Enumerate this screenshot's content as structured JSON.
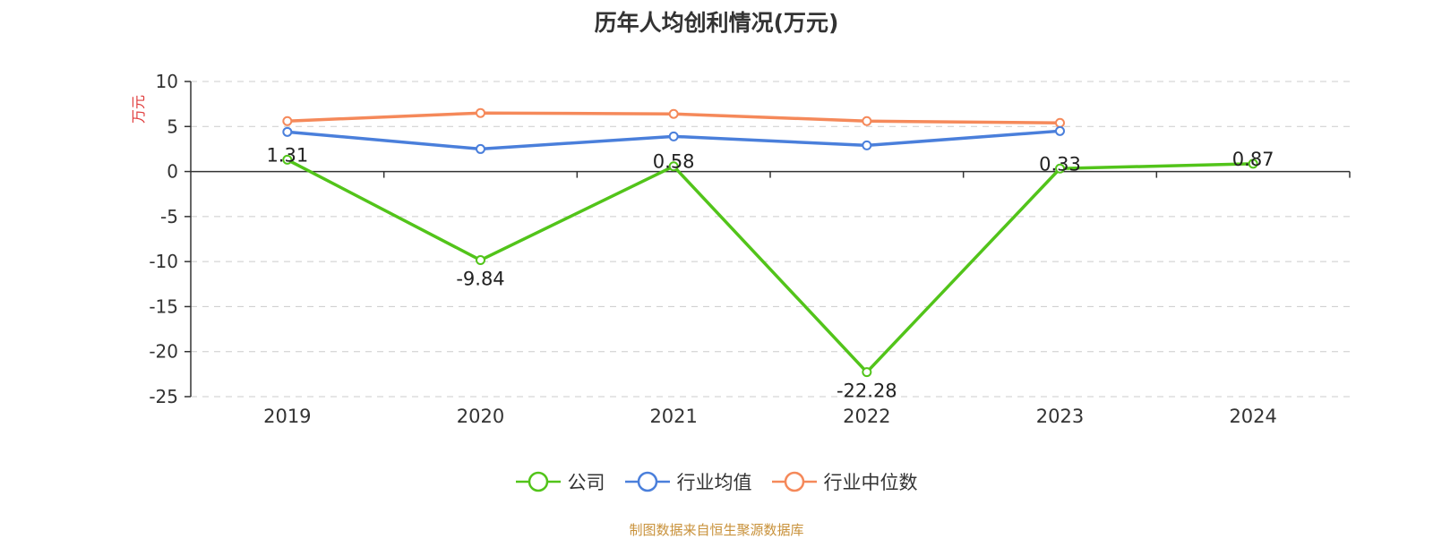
{
  "colors": {
    "company": "#52c41a",
    "industry_avg": "#4a7fdb",
    "industry_median": "#f5895a",
    "grid": "#cccccc",
    "axis": "#333333",
    "unit_label": "#e03c3c",
    "source": "#c8913a"
  },
  "chart_data": {
    "type": "line",
    "title": "历年人均创利情况(万元)",
    "ylabel": "万元",
    "xlabel": "",
    "categories": [
      "2019",
      "2020",
      "2021",
      "2022",
      "2023",
      "2024"
    ],
    "ylim": [
      -25,
      10
    ],
    "yticks": [
      "10",
      "5",
      "0",
      "-5",
      "-10",
      "-15",
      "-20",
      "-25"
    ],
    "grid": true,
    "legend_position": "bottom-center",
    "series": [
      {
        "name": "公司",
        "values": [
          1.31,
          -9.84,
          0.58,
          -22.28,
          0.33,
          0.87
        ],
        "data_labels": [
          "1.31",
          "-9.84",
          "0.58",
          "-22.28",
          "0.33",
          "0.87"
        ]
      },
      {
        "name": "行业均值",
        "values": [
          4.4,
          2.5,
          3.9,
          2.9,
          4.5,
          null
        ]
      },
      {
        "name": "行业中位数",
        "values": [
          5.6,
          6.5,
          6.4,
          5.6,
          5.4,
          null
        ]
      }
    ]
  },
  "footer": {
    "source": "制图数据来自恒生聚源数据库"
  }
}
